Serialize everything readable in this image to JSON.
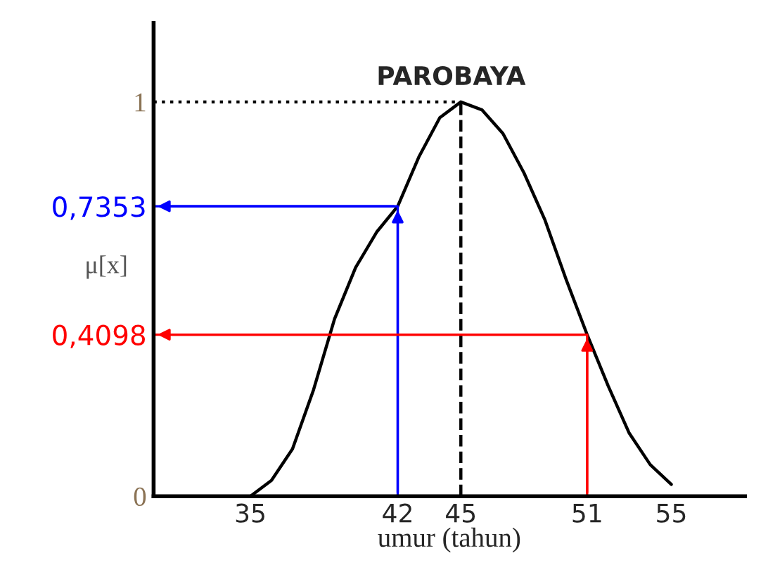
{
  "chart_data": {
    "type": "line",
    "xlabel": "umur (tahun)",
    "ylabel": "μ[x]",
    "annotations": [
      {
        "text": "PAROBAYA",
        "x": 45,
        "y": 1
      }
    ],
    "xlim": [
      30.4,
      58.5
    ],
    "ylim": [
      0,
      1.2
    ],
    "xticks": [
      35,
      42,
      45,
      51,
      55
    ],
    "yticks": [
      0,
      {
        "value": 0.4098,
        "label": "0,4098"
      },
      {
        "value": 0.7353,
        "label": "0,7353"
      },
      1
    ],
    "grid": false,
    "legend": false,
    "marker": "none",
    "series": [
      {
        "color": "#000000",
        "line_style": "solid",
        "x": [
          35,
          36,
          37,
          38,
          39,
          40,
          41,
          42,
          43,
          44,
          45,
          46,
          47,
          48,
          49,
          50,
          51,
          52,
          53,
          54,
          55
        ],
        "values": [
          0,
          0.04,
          0.12,
          0.27,
          0.45,
          0.58,
          0.67,
          0.7353,
          0.86,
          0.96,
          1,
          0.98,
          0.92,
          0.82,
          0.7,
          0.55,
          0.4098,
          0.28,
          0.16,
          0.08,
          0.03
        ]
      },
      {
        "color": "#000000",
        "line_style": "dashed",
        "x": [
          45,
          45
        ],
        "values": [
          0,
          1
        ]
      },
      {
        "color": "#000000",
        "line_style": "dotted",
        "x": [
          30.4,
          45
        ],
        "values": [
          1,
          1
        ]
      },
      {
        "color": "#0000ff",
        "line_style": "solid",
        "x": [
          42,
          42,
          30.4
        ],
        "values": [
          0,
          0.7353,
          0.7353
        ]
      },
      {
        "color": "#ff0000",
        "line_style": "solid",
        "x": [
          51,
          51,
          30.4
        ],
        "values": [
          0,
          0.4098,
          0.4098
        ]
      }
    ]
  }
}
